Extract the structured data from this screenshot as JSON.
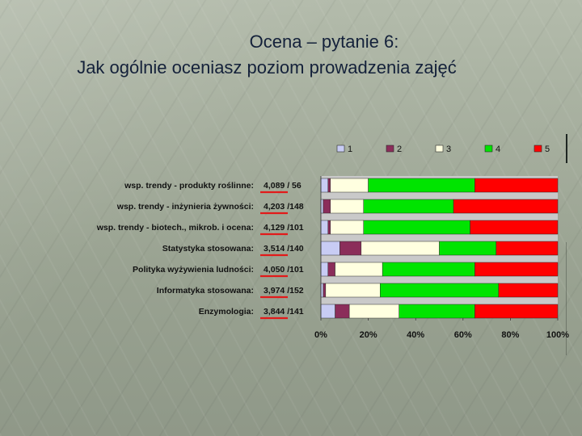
{
  "slide": {
    "title_line1": "Ocena – pytanie 6:",
    "title_line2": "Jak ogólnie oceniasz poziom prowadzenia zajęć"
  },
  "colors": {
    "series": [
      "#c8ccf4",
      "#8b2d5a",
      "#ffffe0",
      "#00e400",
      "#ff0000"
    ],
    "underline": "#e21a1a",
    "plot_bg": "#c9c9c9"
  },
  "chart_data": {
    "type": "bar",
    "orientation": "horizontal",
    "stacked": "percent",
    "categories": [
      "wsp. trendy - produkty roślinne:",
      "wsp. trendy - inżynieria żywności:",
      "wsp. trendy - biotech., mikrob. i ocena:",
      "Statystyka stosowana:",
      "Polityka wyżywienia ludności:",
      "Informatyka stosowana:",
      "Enzymologia:"
    ],
    "annotations": [
      "4,089 / 56",
      "4,203 /148",
      "4,129 /101",
      "3,514 /140",
      "4,050 /101",
      "3,974 /152",
      "3,844 /141"
    ],
    "series": [
      {
        "name": "1",
        "values": [
          3,
          1,
          3,
          8,
          3,
          1,
          6
        ]
      },
      {
        "name": "2",
        "values": [
          1,
          3,
          1,
          9,
          3,
          1,
          6
        ]
      },
      {
        "name": "3",
        "values": [
          16,
          14,
          14,
          33,
          20,
          23,
          21
        ]
      },
      {
        "name": "4",
        "values": [
          45,
          38,
          45,
          24,
          39,
          50,
          32
        ]
      },
      {
        "name": "5",
        "values": [
          35,
          44,
          37,
          26,
          35,
          25,
          35
        ]
      }
    ],
    "xlim": [
      0,
      100
    ],
    "x_ticks": [
      "0%",
      "20%",
      "40%",
      "60%",
      "80%",
      "100%"
    ],
    "legend_position": "top",
    "grid": false,
    "xlabel": "",
    "ylabel": ""
  }
}
